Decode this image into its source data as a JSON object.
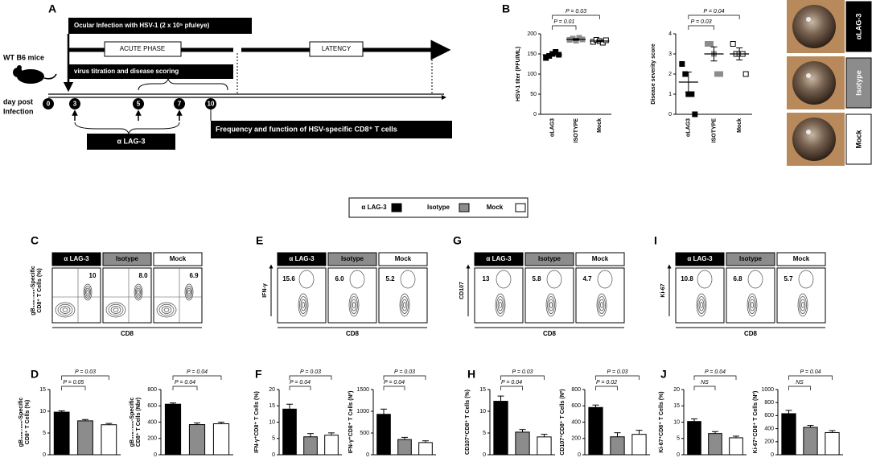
{
  "figure": {
    "timeline": {
      "letter": "A",
      "infection": "Ocular Infection with HSV-1 (2 x 10⁵ pfu/eye)",
      "acute": "ACUTE PHASE",
      "latency": "LATENCY",
      "scoring": "virus titration and disease scoring",
      "mice": "WT B6 mice",
      "day_label": [
        "day post",
        "Infection"
      ],
      "days": [
        0,
        3,
        5,
        7,
        10
      ],
      "treatment": "α LAG-3",
      "readout": "Frequency and function of HSV-specific CD8⁺ T  cells"
    },
    "photos": [
      "αLAG-3",
      "Isotype",
      "Mock"
    ],
    "legend": [
      {
        "name": "α LAG-3",
        "color": "#000000"
      },
      {
        "name": "Isotype",
        "color": "#8c8c8c"
      },
      {
        "name": "Mock",
        "color": "#ffffff"
      }
    ],
    "flow": [
      {
        "letter": "C",
        "headers": [
          "α LAG-3",
          "Isotype",
          "Mock"
        ],
        "ylabel": [
          "gB₄₉₈₋₅₀₅-Specific",
          "CD8⁺ T Cells (%)"
        ],
        "xlabel": "CD8",
        "percents": [
          "10",
          "8.0",
          "6.9"
        ],
        "style": "quadrant"
      },
      {
        "letter": "E",
        "headers": [
          "α LAG-3",
          "Isotype",
          "Mock"
        ],
        "ylabel": [
          "IFN-γ"
        ],
        "xlabel": "CD8",
        "percents": [
          "15.6",
          "6.0",
          "5.2"
        ],
        "style": "gate"
      },
      {
        "letter": "G",
        "headers": [
          "α LAG-3",
          "Isotype",
          "Mock"
        ],
        "ylabel": [
          "CD107"
        ],
        "xlabel": "CD8",
        "percents": [
          "13",
          "5.8",
          "4.7"
        ],
        "style": "gate"
      },
      {
        "letter": "I",
        "headers": [
          "α LAG-3",
          "Isotype",
          "Mock"
        ],
        "ylabel": [
          "Ki-67"
        ],
        "xlabel": "CD8",
        "percents": [
          "10.8",
          "6.8",
          "5.7"
        ],
        "style": "gate"
      }
    ]
  },
  "chart_data": [
    {
      "type": "dot",
      "panel": "B",
      "ylabel": [
        "HSV-1 titer (PFU/ML)"
      ],
      "categories": [
        "αLAG3",
        "ISOTYPE",
        "Mock"
      ],
      "colors": [
        "#000000",
        "#8c8c8c",
        "#ffffff"
      ],
      "values": [
        [
          140,
          145,
          150,
          155,
          148
        ],
        [
          185,
          188,
          183,
          190,
          186
        ],
        [
          180,
          185,
          182,
          178,
          184
        ]
      ],
      "means": [
        148,
        186,
        182
      ],
      "errors": [
        3,
        2,
        2
      ],
      "ylim": [
        0,
        200
      ],
      "yticks": [
        0,
        50,
        100,
        150,
        200
      ],
      "annotations": [
        "P = 0.01",
        "P = 0.03"
      ]
    },
    {
      "type": "dot",
      "ylabel": [
        "Disease severity score"
      ],
      "categories": [
        "αLAG3",
        "ISOTYPE",
        "Mock"
      ],
      "colors": [
        "#000000",
        "#8c8c8c",
        "#ffffff"
      ],
      "values": [
        [
          2.5,
          2,
          1,
          1,
          0
        ],
        [
          3.5,
          3.5,
          3,
          2,
          2
        ],
        [
          3.5,
          3,
          3,
          3,
          2
        ]
      ],
      "means": [
        1.6,
        3,
        3
      ],
      "errors": [
        0.5,
        0.35,
        0.3
      ],
      "ylim": [
        0,
        4
      ],
      "yticks": [
        0,
        1,
        2,
        3,
        4
      ],
      "annotations": [
        "P = 0.03",
        "P = 0.04"
      ]
    },
    {
      "type": "bar",
      "panel": "D",
      "ylabel": [
        "gB₄₉₈₋₅₀₅-Specific",
        "CD8⁺ T Cells (%)"
      ],
      "colors": [
        "#000000",
        "#8c8c8c",
        "#ffffff"
      ],
      "values": [
        9.8,
        7.8,
        6.9
      ],
      "errors": [
        0.3,
        0.3,
        0.3
      ],
      "ylim": [
        0,
        15
      ],
      "yticks": [
        0,
        5,
        10,
        15
      ],
      "annotations": [
        "P = 0.05",
        "P = 0.03"
      ]
    },
    {
      "type": "bar",
      "ylabel": [
        "gB₄₉₈₋₅₀₅-Specific",
        "CD8⁺ T Cells (Nbr)"
      ],
      "colors": [
        "#000000",
        "#8c8c8c",
        "#ffffff"
      ],
      "values": [
        620,
        370,
        380
      ],
      "errors": [
        15,
        20,
        20
      ],
      "ylim": [
        0,
        800
      ],
      "yticks": [
        0,
        200,
        400,
        600,
        800
      ],
      "annotations": [
        "P = 0.04",
        "P = 0.04"
      ]
    },
    {
      "type": "bar",
      "panel": "F",
      "ylabel": [
        "IFN-γ⁺CD8⁺ T Cells (%)"
      ],
      "colors": [
        "#000000",
        "#8c8c8c",
        "#ffffff"
      ],
      "values": [
        14,
        5.5,
        6
      ],
      "errors": [
        1.5,
        1,
        0.7
      ],
      "ylim": [
        0,
        20
      ],
      "yticks": [
        0,
        5,
        10,
        15,
        20
      ],
      "annotations": [
        "P = 0.04",
        "P = 0.03"
      ]
    },
    {
      "type": "bar",
      "ylabel": [
        "IFN-γ⁺CD8⁺ T Cells (Nº)"
      ],
      "colors": [
        "#000000",
        "#8c8c8c",
        "#ffffff"
      ],
      "values": [
        930,
        350,
        280
      ],
      "errors": [
        120,
        50,
        40
      ],
      "ylim": [
        0,
        1500
      ],
      "yticks": [
        0,
        500,
        1000,
        1500
      ],
      "annotations": [
        "P = 0.04",
        "P = 0.03"
      ]
    },
    {
      "type": "bar",
      "panel": "H",
      "ylabel": [
        "CD107⁺CD8⁺ T Cells (%)"
      ],
      "colors": [
        "#000000",
        "#8c8c8c",
        "#ffffff"
      ],
      "values": [
        12.3,
        5.2,
        4.1
      ],
      "errors": [
        1.2,
        0.6,
        0.6
      ],
      "ylim": [
        0,
        15
      ],
      "yticks": [
        0,
        5,
        10,
        15
      ],
      "annotations": [
        "P = 0.04",
        "P = 0.03"
      ]
    },
    {
      "type": "bar",
      "ylabel": [
        "CD107⁺CD8⁺ T Cells (Nº)"
      ],
      "colors": [
        "#000000",
        "#8c8c8c",
        "#ffffff"
      ],
      "values": [
        580,
        220,
        250
      ],
      "errors": [
        30,
        50,
        50
      ],
      "ylim": [
        0,
        800
      ],
      "yticks": [
        0,
        200,
        400,
        600,
        800
      ],
      "annotations": [
        "P = 0.02",
        "P = 0.03"
      ]
    },
    {
      "type": "bar",
      "panel": "J",
      "ylabel": [
        "Ki-67⁺CD8⁺ T Cells (%)"
      ],
      "colors": [
        "#000000",
        "#8c8c8c",
        "#ffffff"
      ],
      "values": [
        10.2,
        6.5,
        5.2
      ],
      "errors": [
        0.8,
        0.6,
        0.5
      ],
      "ylim": [
        0,
        20
      ],
      "yticks": [
        0,
        5,
        10,
        15,
        20
      ],
      "annotations": [
        "NS",
        "P = 0.04"
      ]
    },
    {
      "type": "bar",
      "ylabel": [
        "Ki-67⁺CD8⁺ T Cells (Nº)"
      ],
      "colors": [
        "#000000",
        "#8c8c8c",
        "#ffffff"
      ],
      "values": [
        630,
        420,
        340
      ],
      "errors": [
        50,
        30,
        30
      ],
      "ylim": [
        0,
        1000
      ],
      "yticks": [
        0,
        200,
        400,
        600,
        800,
        1000
      ],
      "annotations": [
        "NS",
        "P = 0.04"
      ]
    }
  ]
}
